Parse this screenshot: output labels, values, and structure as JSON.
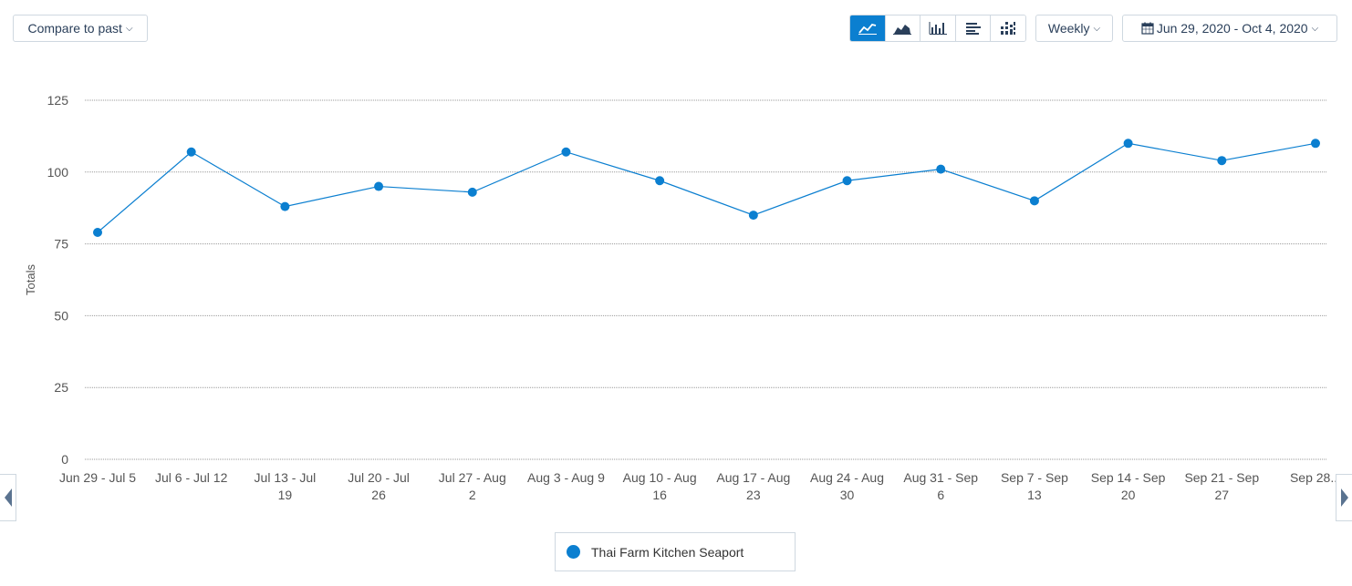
{
  "toolbar": {
    "compare_label": "Compare to past",
    "period_label": "Weekly",
    "date_range_label": "Jun 29, 2020 - Oct 4, 2020",
    "chart_types": [
      {
        "icon": "line-chart-icon",
        "active": true
      },
      {
        "icon": "area-chart-icon",
        "active": false
      },
      {
        "icon": "bar-chart-icon",
        "active": false
      },
      {
        "icon": "horizontal-bar-chart-icon",
        "active": false
      },
      {
        "icon": "stacked-columns-icon",
        "active": false
      }
    ]
  },
  "colors": {
    "accent": "#0b7fd0",
    "text": "#2a3f5a",
    "grid": "#999999"
  },
  "chart_data": {
    "type": "line",
    "ylabel": "Totals",
    "ylim": [
      0,
      125
    ],
    "yticks": [
      0,
      25,
      50,
      75,
      100,
      125
    ],
    "grid": true,
    "legend_position": "bottom-center",
    "categories": [
      [
        "Jun 29 - Jul 5"
      ],
      [
        "Jul 6 - Jul 12"
      ],
      [
        "Jul 13 - Jul",
        "19"
      ],
      [
        "Jul 20 - Jul",
        "26"
      ],
      [
        "Jul 27 - Aug",
        "2"
      ],
      [
        "Aug 3 - Aug 9"
      ],
      [
        "Aug 10 - Aug",
        "16"
      ],
      [
        "Aug 17 - Aug",
        "23"
      ],
      [
        "Aug 24 - Aug",
        "30"
      ],
      [
        "Aug 31 - Sep",
        "6"
      ],
      [
        "Sep 7 - Sep",
        "13"
      ],
      [
        "Sep 14 - Sep",
        "20"
      ],
      [
        "Sep 21 - Sep",
        "27"
      ],
      [
        "Sep 28..."
      ]
    ],
    "series": [
      {
        "name": "Thai Farm Kitchen Seaport",
        "color": "#0b7fd0",
        "values": [
          79,
          107,
          88,
          95,
          93,
          107,
          97,
          85,
          97,
          101,
          90,
          110,
          104,
          110
        ]
      }
    ]
  }
}
